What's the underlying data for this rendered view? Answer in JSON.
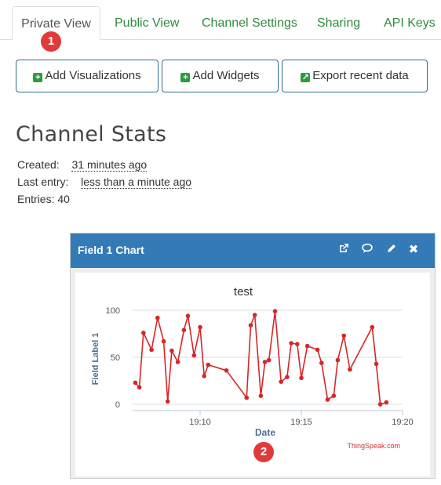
{
  "tabs": [
    {
      "label": "Private View",
      "active": true
    },
    {
      "label": "Public View"
    },
    {
      "label": "Channel Settings"
    },
    {
      "label": "Sharing"
    },
    {
      "label": "API Keys"
    }
  ],
  "badges": {
    "one": "1",
    "two": "2"
  },
  "buttons": {
    "add_visualizations": "Add Visualizations",
    "add_widgets": "Add Widgets",
    "export": "Export recent data"
  },
  "stats": {
    "title": "Channel Stats",
    "created_label": "Created:",
    "created_value": "31 minutes ago",
    "last_entry_label": "Last entry:",
    "last_entry_value": "less than a minute ago",
    "entries_label": "Entries:",
    "entries_value": "40"
  },
  "panel": {
    "title": "Field 1 Chart",
    "icons": [
      "external-link-icon",
      "comment-icon",
      "pencil-icon",
      "close-icon"
    ]
  },
  "colors": {
    "accent": "#337ab7",
    "tab_green": "#2e8b3e",
    "series": "#d62728",
    "badge": "#e03a3a"
  },
  "chart_data": {
    "type": "line",
    "title": "test",
    "xlabel": "Date",
    "ylabel": "Field Label 1",
    "credit": "ThingSpeak.com",
    "ylim": [
      0,
      100
    ],
    "xlim": [
      "19:06:40",
      "19:20:00"
    ],
    "yticks": [
      0,
      50,
      100
    ],
    "xticks": [
      "19:10",
      "19:15",
      "19:20"
    ],
    "grid": true,
    "series": [
      {
        "x": [
          "19:06:48",
          "19:07:00",
          "19:07:12",
          "19:07:36",
          "19:07:54",
          "19:08:12",
          "19:08:24",
          "19:08:36",
          "19:08:54",
          "19:09:12",
          "19:09:24",
          "19:09:42",
          "19:10:00",
          "19:10:12",
          "19:10:24",
          "19:11:18",
          "19:12:18",
          "19:12:30",
          "19:12:42",
          "19:13:00",
          "19:13:12",
          "19:13:24",
          "19:13:42",
          "19:14:00",
          "19:14:18",
          "19:14:30",
          "19:14:48",
          "19:15:00",
          "19:15:18",
          "19:15:48",
          "19:16:00",
          "19:16:18",
          "19:16:36",
          "19:16:48",
          "19:17:06",
          "19:17:24",
          "19:18:30",
          "19:18:42",
          "19:18:54",
          "19:19:12"
        ],
        "values": [
          23,
          18,
          76,
          58,
          92,
          67,
          3,
          57,
          45,
          79,
          94,
          52,
          82,
          30,
          42,
          36,
          7,
          84,
          95,
          9,
          45,
          47,
          99,
          24,
          29,
          65,
          64,
          28,
          62,
          58,
          44,
          5,
          9,
          47,
          73,
          37,
          82,
          43,
          0,
          2
        ]
      }
    ]
  }
}
